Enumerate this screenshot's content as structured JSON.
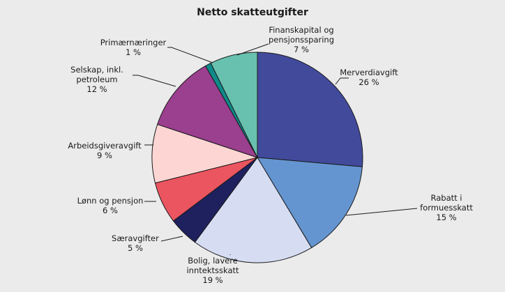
{
  "chart_data": {
    "type": "pie",
    "title": "Netto skatteutgifter",
    "start": "top-clockwise",
    "slices": [
      {
        "label_lines": [
          "Merverdiavgift"
        ],
        "value_label": "26 %",
        "value": 26.4,
        "color": "#424a9c"
      },
      {
        "label_lines": [
          "Rabatt i",
          "formuesskatt"
        ],
        "value_label": "15 %",
        "value": 15.0,
        "color": "#6495d0"
      },
      {
        "label_lines": [
          "Bolig, lavere",
          "inntektsskatt"
        ],
        "value_label": "19 %",
        "value": 18.7,
        "color": "#d6ddf3"
      },
      {
        "label_lines": [
          "Særavgifter"
        ],
        "value_label": "5 %",
        "value": 4.6,
        "color": "#1f205e"
      },
      {
        "label_lines": [
          "Lønn og pensjon"
        ],
        "value_label": "6 %",
        "value": 6.4,
        "color": "#eb5560"
      },
      {
        "label_lines": [
          "Arbeidsgiveravgift"
        ],
        "value_label": "9 %",
        "value": 9.0,
        "color": "#fdd6d3"
      },
      {
        "label_lines": [
          "Selskap, inkl.",
          "petroleum"
        ],
        "value_label": "12 %",
        "value": 11.7,
        "color": "#9b3f8f"
      },
      {
        "label_lines": [
          "Primærnæringer"
        ],
        "value_label": "1 %",
        "value": 0.9,
        "color": "#0f8a8a"
      },
      {
        "label_lines": [
          "Finanskapital og",
          "pensjonssparing"
        ],
        "value_label": "7 %",
        "value": 7.3,
        "color": "#68c1ae"
      }
    ]
  }
}
